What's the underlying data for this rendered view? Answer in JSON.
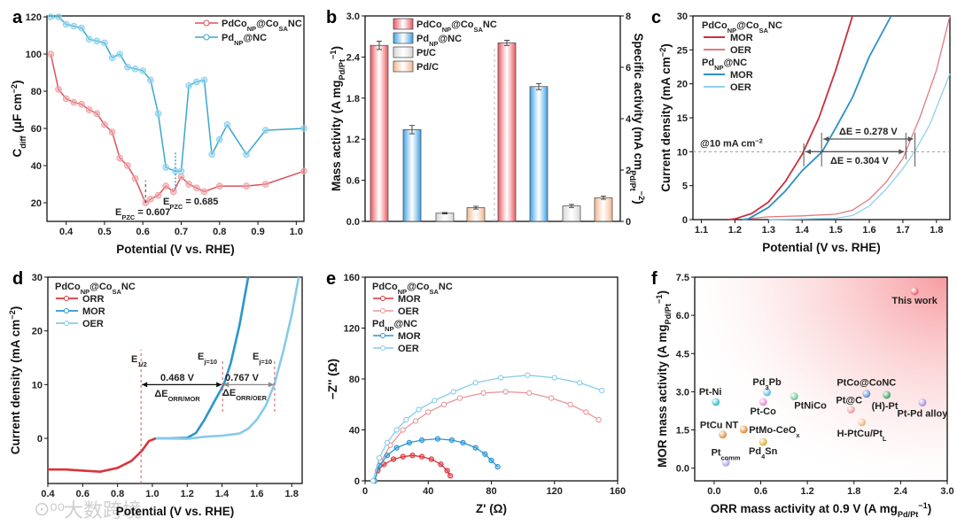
{
  "panel_letters": [
    "a",
    "b",
    "c",
    "d",
    "e",
    "f"
  ],
  "watermark": "大数跨境",
  "chart_data": [
    {
      "panel": "a",
      "type": "line",
      "xlabel": "Potential (V vs. RHE)",
      "ylabel": "C_{diff} (μF cm^{−2})",
      "xlim": [
        0.35,
        1.02
      ],
      "ylim": [
        10,
        120.5
      ],
      "xticks": [
        "0.4",
        "0.5",
        "0.6",
        "0.7",
        "0.8",
        "0.9",
        "1.0"
      ],
      "yticks": [
        "20",
        "40",
        "60",
        "80",
        "100",
        "120"
      ],
      "series": [
        {
          "name": "PdCo_{NP}@Co_{SA}NC",
          "color": "#d9545c",
          "marker": "#f0a3a7",
          "x": [
            0.36,
            0.38,
            0.4,
            0.42,
            0.44,
            0.46,
            0.48,
            0.5,
            0.52,
            0.54,
            0.56,
            0.58,
            0.607,
            0.62,
            0.64,
            0.66,
            0.68,
            0.7,
            0.72,
            0.74,
            0.76,
            0.8,
            0.87,
            0.92,
            1.02
          ],
          "y": [
            100,
            81,
            76,
            74,
            73,
            70,
            68,
            62,
            58,
            44,
            40,
            33,
            20,
            22,
            24,
            29,
            26,
            34,
            30,
            28,
            26,
            29,
            29,
            30,
            37
          ]
        },
        {
          "name": "Pd_{NP}@NC",
          "color": "#3aa6cf",
          "marker": "#8fd3ee",
          "x": [
            0.36,
            0.38,
            0.4,
            0.42,
            0.44,
            0.46,
            0.48,
            0.5,
            0.52,
            0.54,
            0.56,
            0.58,
            0.6,
            0.62,
            0.64,
            0.66,
            0.685,
            0.7,
            0.72,
            0.74,
            0.76,
            0.78,
            0.8,
            0.82,
            0.87,
            0.92,
            1.02
          ],
          "y": [
            120,
            120,
            116,
            115,
            114,
            108,
            107,
            106,
            98,
            100,
            93,
            92,
            91,
            86,
            68,
            39,
            37,
            37,
            83,
            85,
            86,
            46,
            54,
            62,
            46,
            59,
            60
          ]
        }
      ],
      "annotations": [
        {
          "text": "E_{PZC} = 0.607",
          "x": 0.607,
          "color": "#d9545c"
        },
        {
          "text": "E_{PZC} = 0.685",
          "x": 0.685,
          "color": "#3aa6cf"
        }
      ]
    },
    {
      "panel": "b",
      "type": "bar",
      "ylabel": "Mass activity (A mg_{Pd/Pt}^{−1})",
      "y2label": "Specific activity (mA cm_{Pd/Pt}^{−2})",
      "ylim": [
        0,
        3.0
      ],
      "y2lim": [
        0,
        8
      ],
      "yticks": [
        "0.0",
        "0.6",
        "1.2",
        "1.8",
        "2.4",
        "3.0"
      ],
      "y2ticks": [
        "0",
        "2",
        "4",
        "6",
        "8"
      ],
      "categories": [
        "PdCo_{NP}@Co_{SA}NC",
        "Pd_{NP}@NC",
        "Pt/C",
        "Pd/C"
      ],
      "colors": [
        "#e8555e",
        "#3a9fe3",
        "#d6d6d6",
        "#f2b48a"
      ],
      "series": [
        {
          "name": "Mass activity",
          "values": [
            2.57,
            1.34,
            0.12,
            0.2
          ],
          "errors": [
            0.06,
            0.06,
            0.01,
            0.02
          ]
        },
        {
          "name": "Specific activity",
          "values": [
            6.95,
            5.25,
            0.6,
            0.92
          ],
          "errors": [
            0.1,
            0.12,
            0.06,
            0.06
          ]
        }
      ]
    },
    {
      "panel": "c",
      "type": "line",
      "xlabel": "Potential (V vs. RHE)",
      "ylabel": "Current density (mA cm^{−2})",
      "xlim": [
        1.075,
        1.84
      ],
      "ylim": [
        0,
        30
      ],
      "xticks": [
        "1.1",
        "1.2",
        "1.3",
        "1.4",
        "1.5",
        "1.6",
        "1.7",
        "1.8"
      ],
      "yticks": [
        "0",
        "5",
        "10",
        "15",
        "20",
        "25",
        "30"
      ],
      "legend_groups": [
        "PdCo_{NP}@Co_{SA}NC",
        "Pd_{NP}@NC"
      ],
      "series": [
        {
          "group": 0,
          "name": "MOR",
          "color": "#c9303c",
          "x": [
            1.18,
            1.2,
            1.25,
            1.3,
            1.35,
            1.4,
            1.45,
            1.5,
            1.55
          ],
          "y": [
            0,
            0.1,
            0.9,
            2.6,
            5.6,
            9.6,
            15,
            22,
            30
          ]
        },
        {
          "group": 0,
          "name": "OER",
          "color": "#e07a80",
          "x": [
            1.22,
            1.25,
            1.3,
            1.4,
            1.5,
            1.55,
            1.6,
            1.65,
            1.7,
            1.75,
            1.8,
            1.84
          ],
          "y": [
            0,
            0.2,
            0.4,
            0.55,
            0.8,
            1.4,
            3,
            5.5,
            9,
            15,
            22,
            30
          ]
        },
        {
          "group": 1,
          "name": "MOR",
          "color": "#2e90c8",
          "x": [
            1.22,
            1.24,
            1.3,
            1.35,
            1.4,
            1.46,
            1.5,
            1.55,
            1.6,
            1.665
          ],
          "y": [
            0,
            0.1,
            1.8,
            4.2,
            7.2,
            10,
            13.5,
            18,
            24,
            30
          ]
        },
        {
          "group": 1,
          "name": "OER",
          "color": "#8fd0ec",
          "x": [
            1.3,
            1.5,
            1.55,
            1.6,
            1.65,
            1.7,
            1.735,
            1.78,
            1.84
          ],
          "y": [
            0,
            0.2,
            0.6,
            2,
            4.5,
            7.5,
            10,
            14,
            21.5
          ]
        }
      ],
      "reference": "@10 mA cm^{−2}",
      "annotations": [
        {
          "text": "ΔE = 0.278 V",
          "color": "#3aa6cf",
          "from": 1.458,
          "to": 1.736
        },
        {
          "text": "ΔE = 0.304 V",
          "color": "#d9545c",
          "from": 1.405,
          "to": 1.709
        }
      ]
    },
    {
      "panel": "d",
      "type": "line",
      "xlabel": "Potential (V vs. RHE)",
      "ylabel": "Current density (mA cm^{−2})",
      "xlim": [
        0.4,
        1.86
      ],
      "ylim": [
        -8.4,
        30
      ],
      "xticks": [
        "0.4",
        "0.6",
        "0.8",
        "1.0",
        "1.2",
        "1.4",
        "1.6",
        "1.8"
      ],
      "yticks": [
        "0",
        "10",
        "20",
        "30"
      ],
      "legend_title": "PdCo_{NP}@Co_{SA}NC",
      "series": [
        {
          "name": "ORR",
          "color": "#d9343c",
          "x": [
            0.4,
            0.5,
            0.6,
            0.7,
            0.8,
            0.88,
            0.94,
            0.98,
            1.02
          ],
          "y": [
            -5.8,
            -5.8,
            -6,
            -6.2,
            -5.5,
            -4.2,
            -2.3,
            -0.5,
            0
          ]
        },
        {
          "name": "MOR",
          "color": "#2b95cf",
          "x": [
            1.02,
            1.1,
            1.2,
            1.25,
            1.3,
            1.35,
            1.41,
            1.45,
            1.5,
            1.55
          ],
          "y": [
            0,
            0,
            0.1,
            1,
            3.5,
            6.5,
            10,
            14,
            21,
            30
          ]
        },
        {
          "name": "OER",
          "color": "#86cbea",
          "x": [
            1.02,
            1.2,
            1.3,
            1.4,
            1.5,
            1.55,
            1.6,
            1.65,
            1.7,
            1.75,
            1.8,
            1.84
          ],
          "y": [
            0,
            -0.1,
            0.3,
            0.5,
            0.9,
            1.8,
            3.5,
            6,
            10,
            16,
            23,
            30
          ]
        }
      ],
      "annotations": {
        "e_half": "E_{1/2}",
        "e_j10": "E_{j=10}",
        "delta_mor_value": "0.468 V",
        "delta_mor_label": "ΔE_{ORR/MOR}",
        "delta_oer_value": "0.767 V",
        "delta_oer_label": "ΔE_{ORR/OER}",
        "e_half_x": 0.935,
        "mor_j10_x": 1.403,
        "oer_j10_x": 1.702
      }
    },
    {
      "panel": "e",
      "type": "scatter-line",
      "xlabel": "Z' (Ω)",
      "ylabel": "−Z'' (Ω)",
      "xlim": [
        0,
        160
      ],
      "ylim": [
        0,
        160
      ],
      "xticks": [
        "0",
        "40",
        "80",
        "120",
        "160"
      ],
      "yticks": [
        "0",
        "40",
        "80",
        "120",
        "160"
      ],
      "legend_groups": [
        "PdCo_{NP}@Co_{SA}NC",
        "Pd_{NP}@NC"
      ],
      "series": [
        {
          "group": 0,
          "name": "MOR",
          "color": "#d9343c",
          "x": [
            6,
            8,
            12,
            18,
            24,
            30,
            36,
            42,
            48,
            52,
            54
          ],
          "y": [
            0,
            8,
            13,
            17,
            19,
            20,
            19,
            17,
            13,
            8,
            4
          ]
        },
        {
          "group": 0,
          "name": "OER",
          "color": "#e8959a",
          "x": [
            6,
            10,
            16,
            24,
            32,
            40,
            50,
            60,
            75,
            89,
            104,
            118,
            130,
            140,
            148
          ],
          "y": [
            0,
            15,
            28,
            40,
            47,
            54,
            60,
            65,
            69,
            70,
            69,
            65,
            60,
            54,
            48
          ]
        },
        {
          "group": 1,
          "name": "MOR",
          "color": "#2b95cf",
          "x": [
            6,
            9,
            14,
            20,
            28,
            36,
            46,
            55,
            62,
            70,
            76,
            80,
            84
          ],
          "y": [
            0,
            12,
            20,
            26,
            30,
            32,
            33,
            32,
            30,
            26,
            21,
            16,
            11
          ]
        },
        {
          "group": 1,
          "name": "OER",
          "color": "#86cbea",
          "x": [
            5,
            9,
            14,
            20,
            26,
            34,
            44,
            56,
            70,
            86,
            103,
            120,
            136,
            150
          ],
          "y": [
            0,
            18,
            30,
            40,
            48,
            56,
            63,
            70,
            77,
            81,
            83,
            81,
            77,
            71
          ]
        }
      ]
    },
    {
      "panel": "f",
      "type": "scatter",
      "xlabel": "ORR mass activity at 0.9 V (A mg_{Pd/Pt}^{−1})",
      "ylabel": "MOR mass activity (A mg_{Pd/Pt}^{−1})",
      "xlim": [
        -0.25,
        3.0
      ],
      "ylim": [
        -0.5,
        7.5
      ],
      "xticks": [
        "0.0",
        "0.6",
        "1.2",
        "1.8",
        "2.4",
        "3.0"
      ],
      "yticks": [
        "0.0",
        "1.5",
        "3.0",
        "4.5",
        "6.0",
        "7.5"
      ],
      "points": [
        {
          "label": "This work",
          "x": 2.58,
          "y": 6.95,
          "color": "#e0505a"
        },
        {
          "label": "Pt-Ni",
          "x": 0.02,
          "y": 2.6,
          "color": "#1fb5c0"
        },
        {
          "label": "Pd_{3}Pb",
          "x": 0.68,
          "y": 2.98,
          "color": "#4bb2e0"
        },
        {
          "label": "Pt-Co",
          "x": 0.63,
          "y": 2.6,
          "color": "#e27bd0"
        },
        {
          "label": "PtNiCo",
          "x": 1.03,
          "y": 2.82,
          "color": "#5cbf8a"
        },
        {
          "label": "PtCo@CoNC",
          "x": 1.96,
          "y": 2.92,
          "color": "#4f7fd6"
        },
        {
          "label": "Pt@C",
          "x": 1.76,
          "y": 2.3,
          "color": "#ee8d8d"
        },
        {
          "label": "(H)-Pt",
          "x": 2.22,
          "y": 2.88,
          "color": "#2e9a50"
        },
        {
          "label": "Pt-Pd alloy",
          "x": 2.68,
          "y": 2.58,
          "color": "#a07ee0"
        },
        {
          "label": "H-PtCu/Pt_{L}",
          "x": 1.9,
          "y": 1.8,
          "color": "#f0a86a"
        },
        {
          "label": "PtCu NT",
          "x": 0.11,
          "y": 1.32,
          "color": "#e0822a"
        },
        {
          "label": "PtMo-CeO_{x}",
          "x": 0.38,
          "y": 1.52,
          "color": "#e07a1a"
        },
        {
          "label": "Pd_{4}Sn",
          "x": 0.63,
          "y": 1.03,
          "color": "#d4a81c"
        },
        {
          "label": "Pt_{comm}",
          "x": 0.15,
          "y": 0.22,
          "color": "#9a9ae6"
        }
      ]
    }
  ]
}
